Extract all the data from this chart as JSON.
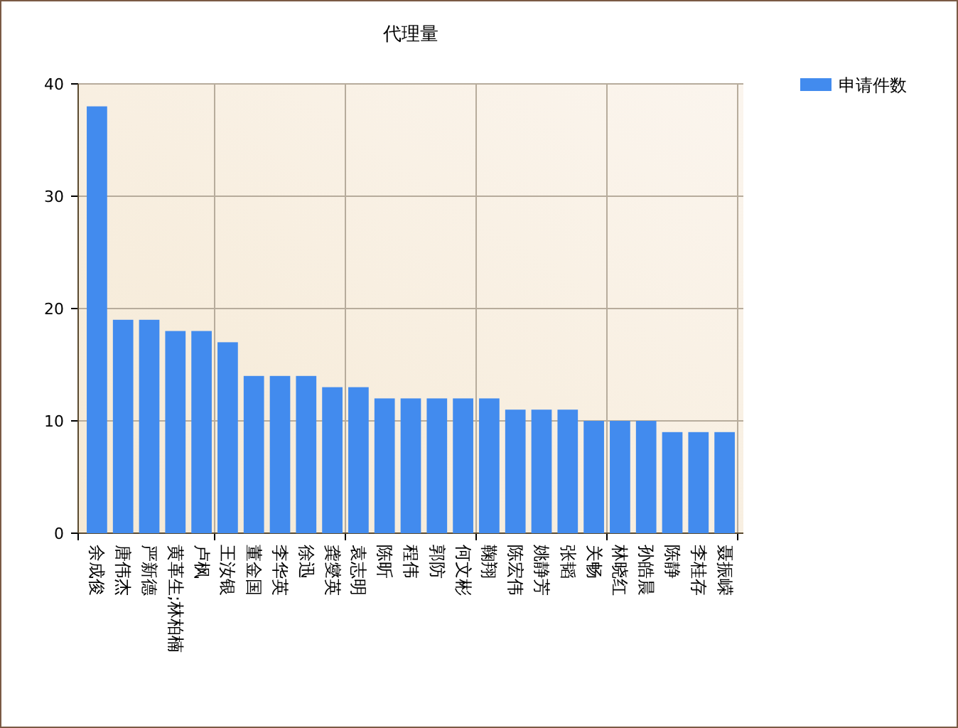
{
  "chart_data": {
    "type": "bar",
    "title": "代理量",
    "categories": [
      "余成俊",
      "唐伟杰",
      "严新德",
      "黄革生;林柏楠",
      "卢枫",
      "王汝银",
      "董金国",
      "李华英",
      "徐迅",
      "龚燮英",
      "袁志明",
      "陈昕",
      "程伟",
      "郭防",
      "何文彬",
      "鞠翔",
      "陈宏伟",
      "姚静芳",
      "张韬",
      "关畅",
      "林晓红",
      "孙皓晨",
      "陈静",
      "李桂存",
      "聂振嵘"
    ],
    "series": [
      {
        "name": "申请件数",
        "color": "#428bee",
        "values": [
          38,
          19,
          19,
          18,
          18,
          17,
          14,
          14,
          14,
          13,
          13,
          12,
          12,
          12,
          12,
          12,
          11,
          11,
          11,
          10,
          10,
          10,
          9,
          9,
          9
        ]
      }
    ],
    "ylim": [
      0,
      40
    ],
    "yticks": [
      0,
      10,
      20,
      30,
      40
    ],
    "grid": true,
    "legend": "top right"
  }
}
